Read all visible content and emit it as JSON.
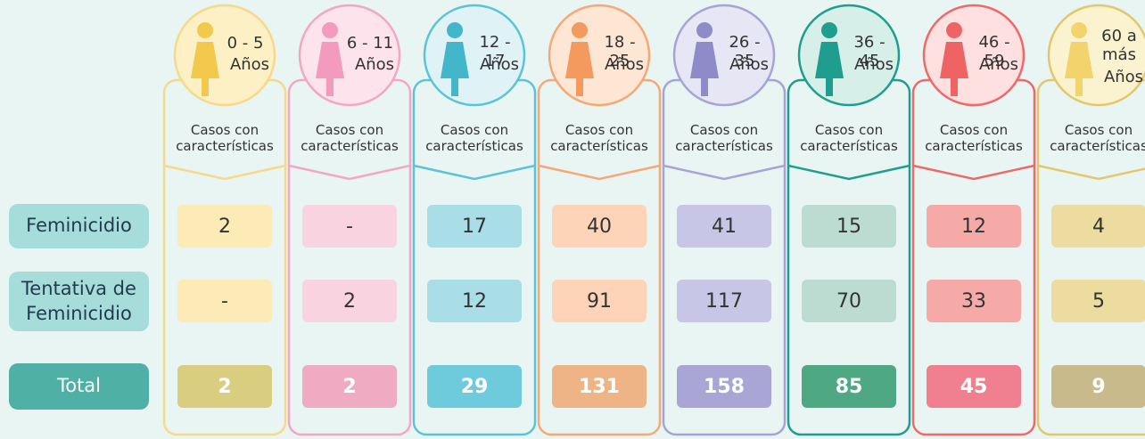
{
  "rows": [
    "Feminicidio",
    "Tentativa de Feminicidio",
    "Total"
  ],
  "columns": [
    {
      "age": "0 - 5",
      "unit": "Años",
      "header": "Casos con características",
      "values": [
        2,
        "-",
        2
      ]
    },
    {
      "age": "6 - 11",
      "unit": "Años",
      "header": "Casos con características",
      "values": [
        "-",
        2,
        2
      ]
    },
    {
      "age": "12 - 17",
      "unit": "Años",
      "header": "Casos con características",
      "values": [
        17,
        12,
        29
      ]
    },
    {
      "age": "18 - 25",
      "unit": "Años",
      "header": "Casos con características",
      "values": [
        40,
        91,
        131
      ]
    },
    {
      "age": "26 - 35",
      "unit": "Años",
      "header": "Casos con características",
      "values": [
        41,
        117,
        158
      ]
    },
    {
      "age": "36 - 45",
      "unit": "Años",
      "header": "Casos con características",
      "values": [
        15,
        70,
        85
      ]
    },
    {
      "age": "46 - 59",
      "unit": "Años",
      "header": "Casos con características",
      "values": [
        12,
        33,
        45
      ]
    },
    {
      "age": "60 a más",
      "unit": "Años",
      "header": "Casos con características",
      "values": [
        4,
        5,
        9
      ]
    }
  ]
}
